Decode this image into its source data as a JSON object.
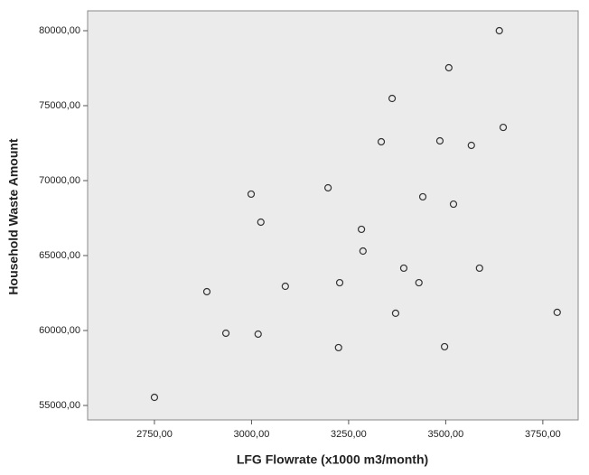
{
  "chart_data": {
    "type": "scatter",
    "x_label": "LFG Flowrate (x1000 m3/month)",
    "y_label": "Household Waste Amount",
    "x": [
      2750,
      2885,
      2934,
      3017,
      2999,
      3024,
      3087,
      3197,
      3227,
      3224,
      3283,
      3287,
      3334,
      3362,
      3371,
      3392,
      3431,
      3441,
      3485,
      3497,
      3508,
      3520,
      3566,
      3587,
      3638,
      3648,
      3787
    ],
    "values": [
      55540,
      62590,
      59820,
      59760,
      69100,
      67230,
      62950,
      69520,
      63190,
      58860,
      66750,
      65300,
      72590,
      75480,
      61150,
      64160,
      63190,
      68920,
      72650,
      58920,
      77530,
      68430,
      72350,
      64160,
      80000,
      73550,
      61210
    ],
    "xlim": [
      2578,
      3841
    ],
    "ylim": [
      54036,
      81325
    ],
    "xticks": [
      {
        "value": 2750,
        "label": "2750,00"
      },
      {
        "value": 3000,
        "label": "3000,00"
      },
      {
        "value": 3250,
        "label": "3250,00"
      },
      {
        "value": 3500,
        "label": "3500,00"
      },
      {
        "value": 3750,
        "label": "3750,00"
      }
    ],
    "yticks": [
      {
        "value": 55000,
        "label": "55000,00"
      },
      {
        "value": 60000,
        "label": "60000,00"
      },
      {
        "value": 65000,
        "label": "65000,00"
      },
      {
        "value": 70000,
        "label": "70000,00"
      },
      {
        "value": 75000,
        "label": "75000,00"
      },
      {
        "value": 80000,
        "label": "80000,00"
      }
    ],
    "background": "#ebebeb",
    "color": "#333333"
  }
}
